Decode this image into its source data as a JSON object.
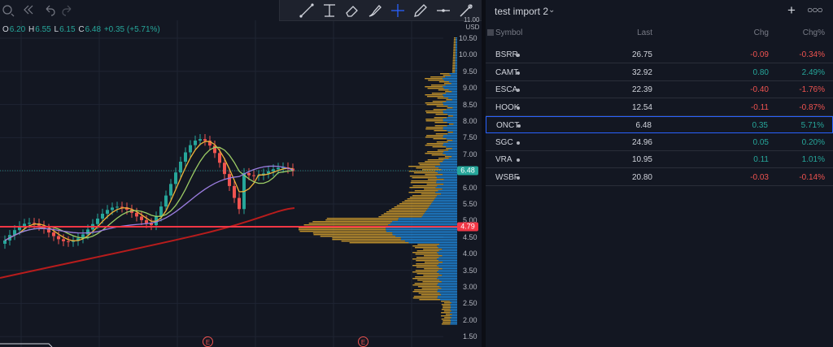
{
  "ohlc": {
    "open_label": "O",
    "open": "6.20",
    "high_label": "H",
    "high": "6.55",
    "low_label": "L",
    "low": "6.15",
    "close_label": "C",
    "close": "6.48",
    "change": "+0.35 (+5.71%)"
  },
  "price_axis": {
    "currency_top": "11.00",
    "currency": "USD",
    "ticks": [
      "10.50",
      "10.00",
      "9.50",
      "9.00",
      "8.50",
      "8.00",
      "7.50",
      "7.00",
      "6.50",
      "6.00",
      "5.50",
      "5.00",
      "4.50",
      "4.00",
      "3.50",
      "3.00",
      "2.50",
      "2.00",
      "1.50"
    ],
    "current_price_tag": "6.48",
    "line_price_tag": "4.79"
  },
  "events": [
    {
      "label": "E"
    },
    {
      "label": "E"
    }
  ],
  "colors": {
    "up": "#26a69a",
    "down": "#ef5350",
    "horizontal_line": "#f23645",
    "ma_fast": "#f0b33a",
    "ma_mid": "#9ccc65",
    "ma_slow": "#9b7de0",
    "ma_long": "#b71c1c",
    "volume_profile_up": "#2196f3",
    "volume_profile_down": "#e0a82e"
  },
  "toolbar_icons": [
    "crosshair-settings-icon",
    "rewind-icon",
    "undo-icon",
    "redo-icon"
  ],
  "drawing_tools": [
    "trend-line-icon",
    "fib-tool-icon",
    "eraser-icon",
    "brush-icon",
    "crosshair-icon",
    "pencil-icon",
    "horizontal-line-icon",
    "magic-brush-icon"
  ],
  "watchlist": {
    "title": "test import 2",
    "columns": {
      "symbol": "Symbol",
      "last": "Last",
      "chg": "Chg",
      "chgp": "Chg%"
    },
    "rows": [
      {
        "symbol": "BSRR",
        "last": "26.75",
        "chg": "-0.09",
        "chgp": "-0.34%",
        "dir": "neg"
      },
      {
        "symbol": "CAMT",
        "last": "32.92",
        "chg": "0.80",
        "chgp": "2.49%",
        "dir": "pos"
      },
      {
        "symbol": "ESCA",
        "last": "22.39",
        "chg": "-0.40",
        "chgp": "-1.76%",
        "dir": "neg"
      },
      {
        "symbol": "HOOK",
        "last": "12.54",
        "chg": "-0.11",
        "chgp": "-0.87%",
        "dir": "neg"
      },
      {
        "symbol": "ONCT",
        "last": "6.48",
        "chg": "0.35",
        "chgp": "5.71%",
        "dir": "pos",
        "selected": true
      },
      {
        "symbol": "SGC",
        "last": "24.96",
        "chg": "0.05",
        "chgp": "0.20%",
        "dir": "pos"
      },
      {
        "symbol": "VRA",
        "last": "10.95",
        "chg": "0.11",
        "chgp": "1.01%",
        "dir": "pos"
      },
      {
        "symbol": "WSBF",
        "last": "20.80",
        "chg": "-0.03",
        "chgp": "-0.14%",
        "dir": "neg"
      }
    ]
  }
}
